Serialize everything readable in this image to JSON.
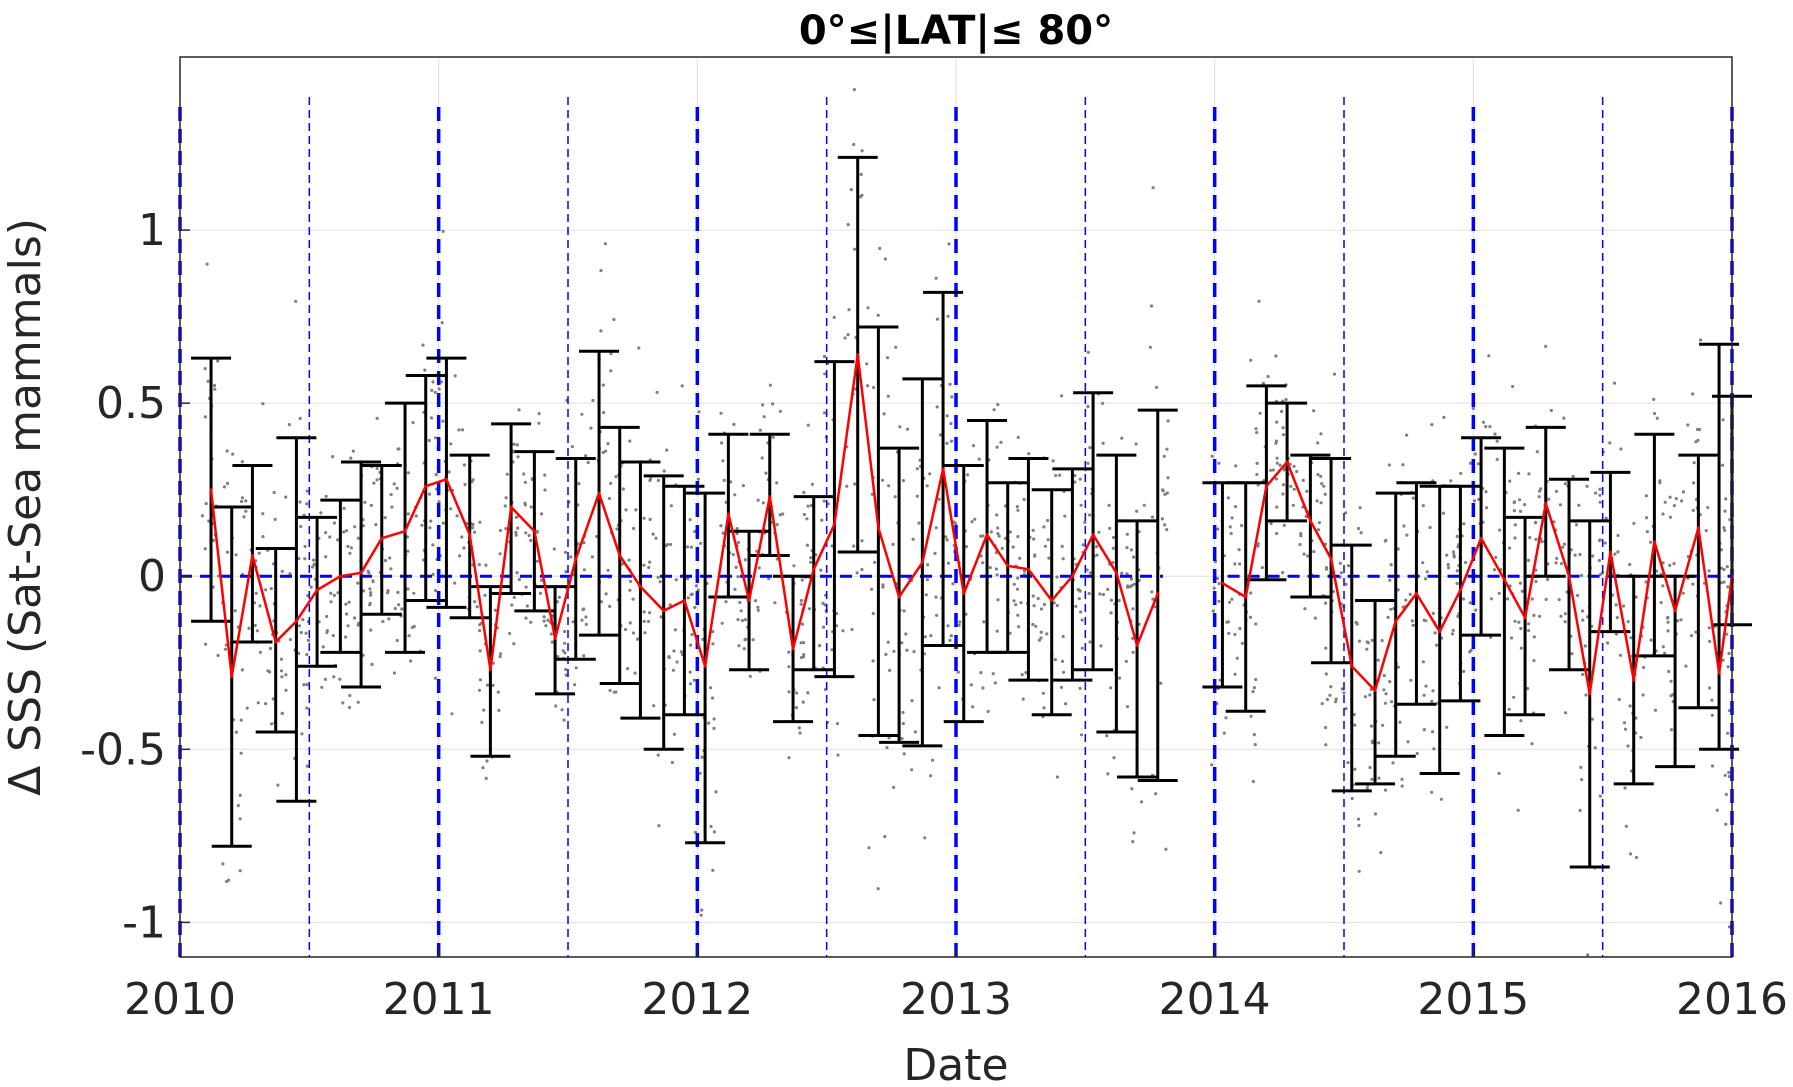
{
  "chart_data": {
    "type": "line",
    "title": "0°≤|LAT|≤ 80°",
    "xlabel": "Date",
    "ylabel": "Δ SSS (Sat-Sea mammals)",
    "xlim": [
      2010.0,
      2016.0
    ],
    "ylim": [
      -1.1,
      1.5
    ],
    "x_ticks": [
      2010,
      2011,
      2012,
      2013,
      2014,
      2015,
      2016
    ],
    "x_tick_labels": [
      "2010",
      "2011",
      "2012",
      "2013",
      "2014",
      "2015",
      "2016"
    ],
    "y_ticks": [
      -1,
      -0.5,
      0,
      0.5,
      1
    ],
    "y_tick_labels": [
      "-1",
      "-0.5",
      "0",
      "0.5",
      "1"
    ],
    "grid": true,
    "colors": {
      "mean_line": "#ff0000",
      "error_bars": "#000000",
      "scatter": "#808080",
      "reference_lines": "#0000ff",
      "grid": "#e0e0e0"
    },
    "reference_lines": {
      "zero_line_segments": [
        [
          2010.0,
          2013.8
        ],
        [
          2014.05,
          2016.0
        ]
      ],
      "year_lines": [
        2010,
        2011,
        2012,
        2013,
        2014,
        2015,
        2016
      ],
      "half_year_lines": [
        2010.5,
        2011.5,
        2012.5,
        2013.5,
        2014.5,
        2015.5
      ]
    },
    "series": [
      {
        "x": [
          2010.12,
          2010.2,
          2010.28,
          2010.37,
          2010.45,
          2010.53,
          2010.62,
          2010.7,
          2010.78,
          2010.87,
          2010.95,
          2011.03,
          2011.12,
          2011.2,
          2011.28,
          2011.37,
          2011.45,
          2011.53,
          2011.62,
          2011.7,
          2011.78,
          2011.87,
          2011.95,
          2012.03,
          2012.12,
          2012.2,
          2012.28,
          2012.37,
          2012.45,
          2012.53,
          2012.62,
          2012.7,
          2012.78,
          2012.87,
          2012.95,
          2013.03,
          2013.12,
          2013.2,
          2013.28,
          2013.37,
          2013.45,
          2013.53,
          2013.62,
          2013.7,
          2013.78
        ],
        "mean": [
          0.25,
          -0.29,
          0.06,
          -0.19,
          -0.13,
          -0.04,
          0.0,
          0.01,
          0.11,
          0.13,
          0.26,
          0.28,
          0.12,
          -0.27,
          0.2,
          0.13,
          -0.18,
          0.05,
          0.24,
          0.06,
          -0.03,
          -0.1,
          -0.07,
          -0.26,
          0.18,
          -0.07,
          0.23,
          -0.21,
          0.02,
          0.15,
          0.64,
          0.14,
          -0.06,
          0.04,
          0.31,
          -0.05,
          0.12,
          0.03,
          0.02,
          -0.07,
          0.0,
          0.12,
          0.01,
          -0.2,
          -0.05
        ],
        "err_low": [
          -0.13,
          -0.78,
          -0.19,
          -0.45,
          -0.65,
          -0.26,
          -0.22,
          -0.32,
          -0.11,
          -0.22,
          -0.07,
          -0.09,
          -0.12,
          -0.52,
          -0.05,
          -0.1,
          -0.34,
          -0.24,
          -0.17,
          -0.31,
          -0.41,
          -0.5,
          -0.4,
          -0.77,
          -0.06,
          -0.27,
          0.06,
          -0.42,
          -0.27,
          -0.29,
          0.07,
          -0.46,
          -0.48,
          -0.49,
          -0.2,
          -0.42,
          -0.22,
          -0.22,
          -0.3,
          -0.4,
          -0.3,
          -0.27,
          -0.45,
          -0.58,
          -0.59
        ],
        "err_high": [
          0.63,
          0.2,
          0.32,
          0.08,
          0.4,
          0.17,
          0.22,
          0.33,
          0.32,
          0.5,
          0.58,
          0.63,
          0.35,
          -0.03,
          0.44,
          0.36,
          -0.03,
          0.34,
          0.65,
          0.43,
          0.33,
          0.29,
          0.26,
          0.24,
          0.41,
          0.13,
          0.41,
          0.0,
          0.23,
          0.62,
          1.21,
          0.72,
          0.37,
          0.57,
          0.82,
          0.32,
          0.45,
          0.27,
          0.34,
          0.25,
          0.31,
          0.53,
          0.35,
          0.16,
          0.48
        ]
      },
      {
        "x": [
          2014.03,
          2014.12,
          2014.2,
          2014.28,
          2014.37,
          2014.45,
          2014.53,
          2014.62,
          2014.7,
          2014.78,
          2014.87,
          2014.95,
          2015.03,
          2015.12,
          2015.2,
          2015.28,
          2015.37,
          2015.45,
          2015.53,
          2015.62,
          2015.7,
          2015.78,
          2015.87,
          2015.95,
          2016.0
        ],
        "mean": [
          -0.02,
          -0.06,
          0.26,
          0.33,
          0.16,
          0.05,
          -0.26,
          -0.33,
          -0.13,
          -0.05,
          -0.16,
          -0.04,
          0.11,
          -0.01,
          -0.12,
          0.21,
          0.0,
          -0.34,
          0.07,
          -0.3,
          0.1,
          -0.1,
          0.14,
          -0.28,
          0.0
        ],
        "err_low": [
          -0.32,
          -0.39,
          -0.01,
          0.16,
          -0.06,
          -0.25,
          -0.62,
          -0.6,
          -0.52,
          -0.37,
          -0.57,
          -0.36,
          -0.17,
          -0.46,
          -0.4,
          0.0,
          -0.27,
          -0.84,
          -0.16,
          -0.6,
          -0.23,
          -0.55,
          -0.38,
          -0.5,
          -0.14
        ],
        "err_high": [
          0.27,
          0.27,
          0.55,
          0.5,
          0.35,
          0.34,
          0.09,
          -0.07,
          0.24,
          0.27,
          0.26,
          0.26,
          0.4,
          0.37,
          0.17,
          0.43,
          0.28,
          0.16,
          0.3,
          0.0,
          0.41,
          0.0,
          0.35,
          0.67,
          0.52
        ]
      }
    ]
  }
}
